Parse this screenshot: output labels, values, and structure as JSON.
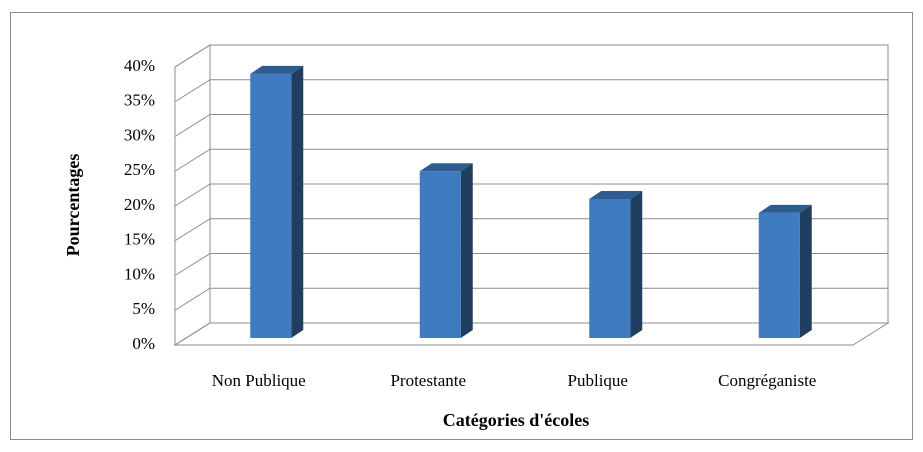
{
  "chart_data": {
    "type": "bar3d",
    "x_label": "Catégories d'écoles",
    "y_label": "Pourcentages",
    "categories": [
      "Non Publique",
      "Protestante",
      "Publique",
      "Congréganiste"
    ],
    "values": [
      38,
      24,
      20,
      18
    ],
    "color": "#3f7bc0",
    "ylim": [
      0,
      40
    ],
    "yticks": [
      {
        "value": 0,
        "label": "0%"
      },
      {
        "value": 5,
        "label": "5%"
      },
      {
        "value": 10,
        "label": "10%"
      },
      {
        "value": 15,
        "label": "15%"
      },
      {
        "value": 20,
        "label": "20%"
      },
      {
        "value": 25,
        "label": "25%"
      },
      {
        "value": 30,
        "label": "30%"
      },
      {
        "value": 35,
        "label": "35%"
      },
      {
        "value": 40,
        "label": "40%"
      }
    ],
    "grid": true
  }
}
